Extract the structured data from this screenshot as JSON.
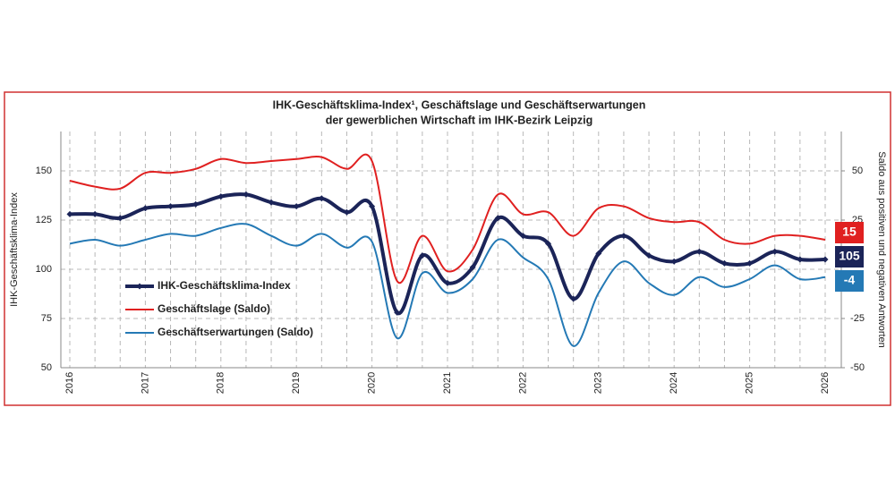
{
  "chart_data": {
    "type": "line",
    "title_lines": [
      "IHK-Geschäftsklima-Index¹, Geschäftslage und Geschäftserwartungen",
      "der gewerblichen Wirtschaft im IHK-Bezirk Leipzig"
    ],
    "y_label": "IHK-Geschäftsklima-Index",
    "y2_label": "Saldo aus positiven und negativen Antworten",
    "categories": [
      "2016",
      null,
      null,
      "2017",
      null,
      null,
      "2018",
      null,
      null,
      "2019",
      null,
      null,
      "2020",
      null,
      null,
      "2021",
      null,
      null,
      "2022",
      null,
      null,
      "2023",
      null,
      null,
      "2024",
      null,
      null,
      "2025",
      null,
      null,
      "2026"
    ],
    "ylim": [
      50,
      170
    ],
    "yticks": [
      50,
      75,
      100,
      125,
      150
    ],
    "y2lim": [
      -50,
      70
    ],
    "y2ticks": [
      -50,
      -25,
      25,
      50
    ],
    "grid": true,
    "series": [
      {
        "name": "IHK-Geschäftsklima-Index",
        "color": "#1b2458",
        "markers": true,
        "values": [
          128,
          128,
          126,
          131,
          132,
          133,
          137,
          138,
          134,
          132,
          136,
          129,
          132,
          78,
          107,
          93,
          101,
          126,
          117,
          113,
          85,
          108,
          117,
          107,
          104,
          109,
          103,
          103,
          109,
          105,
          105
        ]
      },
      {
        "name": "Geschäftslage (Saldo)",
        "color": "#e02020",
        "axis": "y2",
        "values": [
          45,
          42,
          41,
          49,
          49,
          51,
          56,
          54,
          55,
          56,
          57,
          51,
          55,
          -6,
          17,
          -1,
          10,
          38,
          28,
          29,
          17,
          31,
          32,
          26,
          24,
          24,
          15,
          13,
          17,
          17,
          15
        ]
      },
      {
        "name": "Geschäftserwartungen (Saldo)",
        "color": "#2479b5",
        "axis": "y2",
        "values": [
          13,
          15,
          12,
          15,
          18,
          17,
          21,
          23,
          17,
          12,
          18,
          11,
          14,
          -35,
          -2,
          -12,
          -5,
          15,
          6,
          -5,
          -39,
          -12,
          4,
          -7,
          -13,
          -4,
          -9,
          -5,
          2,
          -5,
          -4
        ]
      }
    ]
  }
}
